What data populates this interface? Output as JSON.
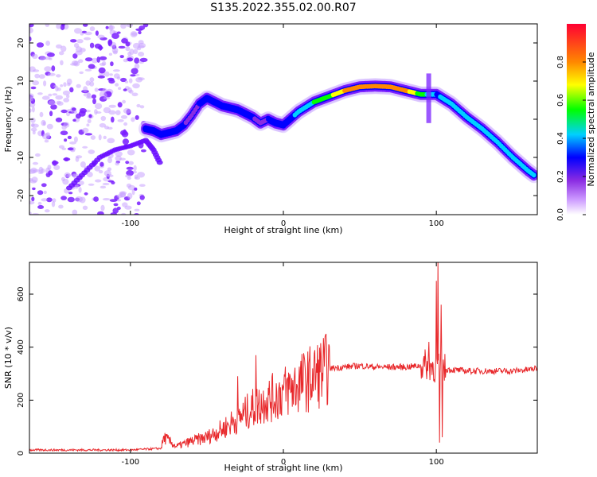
{
  "figure": {
    "title": "S135.2022.355.02.00.R07"
  },
  "chart_data": [
    {
      "type": "heatmap",
      "xlabel": "Height of straight line (km)",
      "ylabel": "Frequency (Hz)",
      "xlim": [
        -166,
        166
      ],
      "ylim": [
        -25,
        25
      ],
      "x_ticks": [
        -100,
        0,
        100
      ],
      "y_ticks": [
        -20,
        -10,
        0,
        10,
        20
      ],
      "colorbar": {
        "label": "Normalized spectral amplitude",
        "range": [
          0,
          1
        ],
        "ticks": [
          "0.0",
          "0.2",
          "0.4",
          "0.6",
          "0.8"
        ],
        "colormap": [
          "#ffffff",
          "#cc99ff",
          "#8a2be2",
          "#0000ff",
          "#00d0ff",
          "#00ff00",
          "#ffff00",
          "#ff8800",
          "#ff0033"
        ]
      },
      "ridge": {
        "x": [
          -90,
          -85,
          -80,
          -75,
          -70,
          -65,
          -60,
          -55,
          -50,
          -45,
          -40,
          -35,
          -30,
          -25,
          -20,
          -15,
          -10,
          -5,
          0,
          10,
          20,
          30,
          40,
          50,
          60,
          70,
          80,
          90,
          100,
          110,
          120,
          130,
          140,
          150,
          160,
          165
        ],
        "y": [
          -2.5,
          -3.0,
          -4.0,
          -3.5,
          -3.0,
          -1.5,
          1.0,
          4.0,
          5.5,
          4.5,
          3.5,
          3.0,
          2.5,
          1.5,
          0.5,
          -1.0,
          0.0,
          -1.0,
          -1.5,
          2.0,
          4.5,
          6.0,
          7.5,
          8.5,
          8.7,
          8.5,
          7.5,
          6.5,
          6.5,
          4.0,
          0.5,
          -2.5,
          -6.0,
          -10.0,
          -13.5,
          -15.0
        ],
        "amplitude": [
          0.35,
          0.3,
          0.35,
          0.3,
          0.3,
          0.3,
          0.25,
          0.3,
          0.4,
          0.3,
          0.35,
          0.3,
          0.3,
          0.35,
          0.3,
          0.25,
          0.3,
          0.35,
          0.35,
          0.45,
          0.55,
          0.65,
          0.8,
          0.9,
          0.95,
          0.9,
          0.85,
          0.6,
          0.4,
          0.5,
          0.5,
          0.5,
          0.5,
          0.45,
          0.5,
          0.5
        ]
      },
      "secondary_branch": {
        "x": [
          -140,
          -130,
          -120,
          -110,
          -100,
          -90,
          -85,
          -80
        ],
        "y": [
          -18.0,
          -14.0,
          -10.0,
          -8.0,
          -7.0,
          -5.5,
          -8.0,
          -12.0
        ]
      },
      "noise_region": {
        "x": [
          -166,
          -90
        ],
        "y": [
          -25,
          25
        ]
      }
    },
    {
      "type": "line",
      "xlabel": "Height of straight line (km)",
      "ylabel": "SNR (10 * v/v)",
      "xlim": [
        -166,
        166
      ],
      "ylim": [
        0,
        720
      ],
      "x_ticks": [
        -100,
        0,
        100
      ],
      "y_ticks": [
        0,
        200,
        400,
        600
      ],
      "line_color": "#e8282b",
      "profile": {
        "x": [
          -166,
          -100,
          -80,
          -78,
          -70,
          -60,
          -50,
          -40,
          -30,
          -20,
          -10,
          0,
          10,
          20,
          25,
          30,
          40,
          50,
          60,
          70,
          80,
          90,
          95,
          100,
          110,
          120,
          130,
          140,
          150,
          160,
          166
        ],
        "y": [
          12,
          12,
          18,
          60,
          25,
          45,
          60,
          90,
          130,
          170,
          200,
          230,
          260,
          290,
          310,
          320,
          325,
          330,
          325,
          325,
          325,
          330,
          335,
          320,
          315,
          310,
          310,
          310,
          310,
          315,
          320
        ]
      },
      "spikes": [
        {
          "x": -30,
          "y": 290
        },
        {
          "x": -18,
          "y": 370
        },
        {
          "x": -12,
          "y": 200
        },
        {
          "x": 95,
          "y": 420
        },
        {
          "x": 100,
          "y": 650
        },
        {
          "x": 101,
          "y": 720
        },
        {
          "x": 102,
          "y": 40
        },
        {
          "x": 103,
          "y": 560
        },
        {
          "x": 104,
          "y": 60
        }
      ]
    }
  ]
}
